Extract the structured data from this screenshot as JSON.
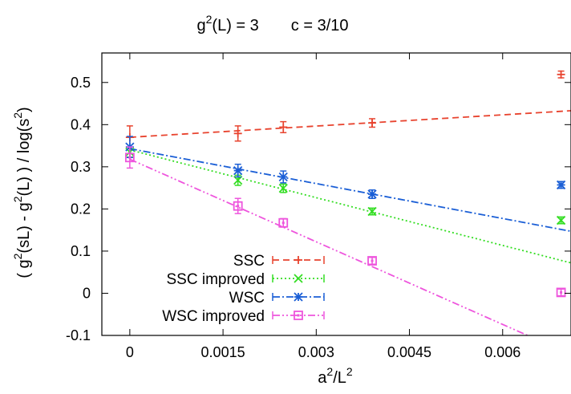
{
  "chart_data": {
    "type": "scatter",
    "title_parts": [
      "g",
      "2",
      "(L) = 3",
      "c = 3/10"
    ],
    "xlabel_parts": [
      "a",
      "2",
      "/L",
      "2"
    ],
    "ylabel_parts": [
      "( g",
      "2",
      "(sL) - g",
      "2",
      "(L) ) / log(s",
      "2",
      ")"
    ],
    "xlim": [
      -0.00045,
      0.0071
    ],
    "ylim": [
      -0.1,
      0.57
    ],
    "xticks": [
      0,
      0.0015,
      0.003,
      0.0045,
      0.006
    ],
    "xtick_labels": [
      "0",
      "0.0015",
      "0.003",
      "0.0045",
      "0.006"
    ],
    "yticks": [
      -0.1,
      0,
      0.1,
      0.2,
      0.3,
      0.4,
      0.5
    ],
    "ytick_labels": [
      "-0.1",
      "0",
      "0.1",
      "0.2",
      "0.3",
      "0.4",
      "0.5"
    ],
    "legend_position": "bottom-left",
    "series": [
      {
        "name": "SSC",
        "color": "#e8432e",
        "marker": "plus",
        "dash": "8,5",
        "points": [
          {
            "x": 0.0,
            "y": 0.37,
            "err": 0.027
          },
          {
            "x": 0.00174,
            "y": 0.379,
            "err": 0.018
          },
          {
            "x": 0.00247,
            "y": 0.394,
            "err": 0.013
          },
          {
            "x": 0.0039,
            "y": 0.404,
            "err": 0.01
          },
          {
            "x": 0.00694,
            "y": 0.519,
            "err": 0.008
          }
        ],
        "fit": [
          0.0,
          0.37,
          0.0071,
          0.433
        ]
      },
      {
        "name": "SSC improved",
        "color": "#33dd22",
        "marker": "x",
        "dash": "2,3",
        "points": [
          {
            "x": 0.0,
            "y": 0.335,
            "err": 0.012
          },
          {
            "x": 0.00174,
            "y": 0.268,
            "err": 0.012
          },
          {
            "x": 0.00247,
            "y": 0.249,
            "err": 0.01
          },
          {
            "x": 0.0039,
            "y": 0.194,
            "err": 0.008
          },
          {
            "x": 0.00694,
            "y": 0.173,
            "err": 0.008
          }
        ],
        "fit": [
          0.0,
          0.34,
          0.0071,
          0.072
        ]
      },
      {
        "name": "WSC",
        "color": "#1b5fd6",
        "marker": "star",
        "dash": "9,3,2,3",
        "points": [
          {
            "x": 0.0,
            "y": 0.347,
            "err": 0.025
          },
          {
            "x": 0.00174,
            "y": 0.291,
            "err": 0.015
          },
          {
            "x": 0.00247,
            "y": 0.276,
            "err": 0.014
          },
          {
            "x": 0.0039,
            "y": 0.235,
            "err": 0.01
          },
          {
            "x": 0.00694,
            "y": 0.257,
            "err": 0.008
          }
        ],
        "fit": [
          0.0,
          0.343,
          0.0071,
          0.147
        ]
      },
      {
        "name": "WSC improved",
        "color": "#ee55dd",
        "marker": "square",
        "dash": "9,3,2,3,2,3",
        "points": [
          {
            "x": 0.0,
            "y": 0.322,
            "err": 0.025
          },
          {
            "x": 0.00174,
            "y": 0.207,
            "err": 0.018
          },
          {
            "x": 0.00247,
            "y": 0.167,
            "err": 0.01
          },
          {
            "x": 0.0039,
            "y": 0.077,
            "err": 0.008
          },
          {
            "x": 0.00694,
            "y": 0.002,
            "err": 0.008
          }
        ],
        "fit": [
          0.0,
          0.318,
          0.0064,
          -0.1
        ]
      }
    ]
  }
}
